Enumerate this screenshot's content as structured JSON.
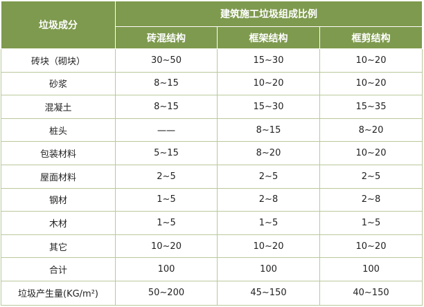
{
  "table": {
    "header": {
      "component": "垃圾成分",
      "group": "建筑施工垃圾组成比例",
      "columns": [
        "砖混结构",
        "框架结构",
        "框剪结构"
      ]
    },
    "rows": [
      {
        "label": "砖块（砌块）",
        "values": [
          "30~50",
          "15~30",
          "10~20"
        ]
      },
      {
        "label": "砂浆",
        "values": [
          "8~15",
          "10~20",
          "10~20"
        ]
      },
      {
        "label": "混凝土",
        "values": [
          "8~15",
          "15~30",
          "15~35"
        ]
      },
      {
        "label": "桩头",
        "values": [
          "一一",
          "8~15",
          "8~20"
        ]
      },
      {
        "label": "包装材料",
        "values": [
          "5~15",
          "8~20",
          "10~20"
        ]
      },
      {
        "label": "屋面材料",
        "values": [
          "2~5",
          "2~5",
          "2~5"
        ]
      },
      {
        "label": "钢材",
        "values": [
          "1~5",
          "2~8",
          "2~8"
        ]
      },
      {
        "label": "木材",
        "values": [
          "1~5",
          "1~5",
          "1~5"
        ]
      },
      {
        "label": "其它",
        "values": [
          "10~20",
          "10~20",
          "10~20"
        ]
      },
      {
        "label": "合计",
        "values": [
          "100",
          "100",
          "100"
        ]
      },
      {
        "label": "垃圾产生量(KG/m²)",
        "values": [
          "50~200",
          "45~150",
          "40~150"
        ]
      }
    ]
  }
}
